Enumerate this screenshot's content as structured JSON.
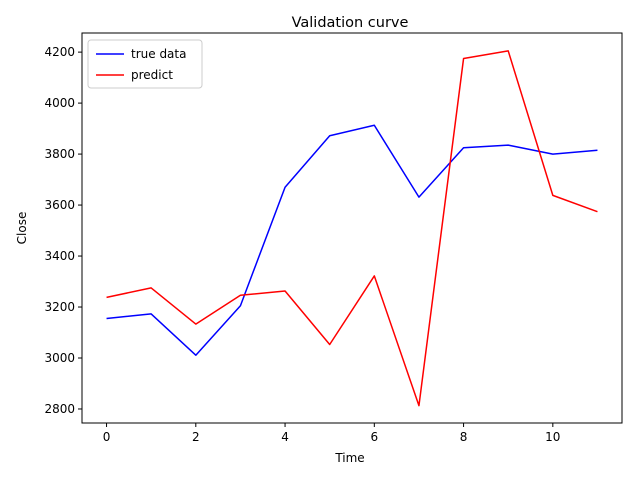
{
  "chart_data": {
    "type": "line",
    "title": "Validation curve",
    "xlabel": "Time",
    "ylabel": "Close",
    "x": [
      0,
      1,
      2,
      3,
      4,
      5,
      6,
      7,
      8,
      9,
      10,
      11
    ],
    "xlim": [
      -0.55,
      11.55
    ],
    "ylim": [
      2745,
      4275
    ],
    "xticks": [
      0,
      2,
      4,
      6,
      8,
      10
    ],
    "yticks": [
      2800,
      3000,
      3200,
      3400,
      3600,
      3800,
      4000,
      4200
    ],
    "grid": false,
    "legend_position": "upper-left",
    "series": [
      {
        "name": "true data",
        "color": "#0000ff",
        "values": [
          3155,
          3173,
          3011,
          3205,
          3670,
          3872,
          3913,
          3631,
          3825,
          3835,
          3800,
          3815
        ]
      },
      {
        "name": "predict",
        "color": "#ff0000",
        "values": [
          3238,
          3275,
          3133,
          3246,
          3263,
          3053,
          3322,
          2813,
          4175,
          4205,
          3638,
          3574
        ]
      }
    ]
  }
}
